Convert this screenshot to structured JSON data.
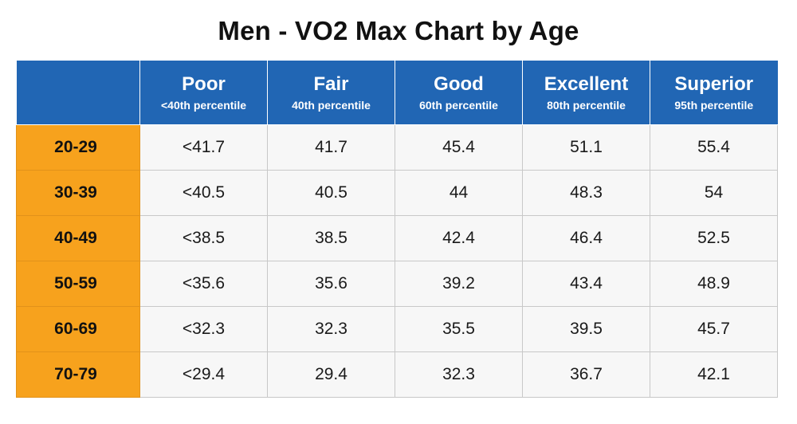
{
  "title": "Men - VO2 Max Chart by Age",
  "colors": {
    "header_bg": "#2166b4",
    "age_bg": "#f7a21d",
    "cell_bg": "#f7f7f7"
  },
  "columns": [
    {
      "label": "Poor",
      "sub": "<40th percentile"
    },
    {
      "label": "Fair",
      "sub": "40th percentile"
    },
    {
      "label": "Good",
      "sub": "60th percentile"
    },
    {
      "label": "Excellent",
      "sub": "80th percentile"
    },
    {
      "label": "Superior",
      "sub": "95th percentile"
    }
  ],
  "rows": [
    {
      "age": "20-29",
      "values": [
        "<41.7",
        "41.7",
        "45.4",
        "51.1",
        "55.4"
      ]
    },
    {
      "age": "30-39",
      "values": [
        "<40.5",
        "40.5",
        "44",
        "48.3",
        "54"
      ]
    },
    {
      "age": "40-49",
      "values": [
        "<38.5",
        "38.5",
        "42.4",
        "46.4",
        "52.5"
      ]
    },
    {
      "age": "50-59",
      "values": [
        "<35.6",
        "35.6",
        "39.2",
        "43.4",
        "48.9"
      ]
    },
    {
      "age": "60-69",
      "values": [
        "<32.3",
        "32.3",
        "35.5",
        "39.5",
        "45.7"
      ]
    },
    {
      "age": "70-79",
      "values": [
        "<29.4",
        "29.4",
        "32.3",
        "36.7",
        "42.1"
      ]
    }
  ]
}
